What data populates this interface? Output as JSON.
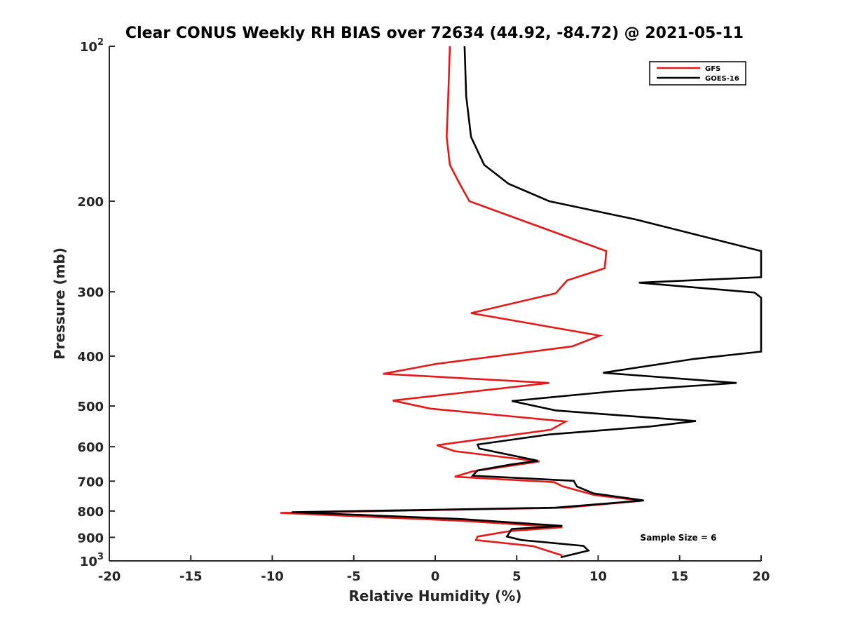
{
  "chart_data": {
    "type": "line",
    "title": "Clear CONUS Weekly RH BIAS over 72634 (44.92, -84.72) @ 2021-05-11",
    "xlabel": "Relative Humidity (%)",
    "ylabel": "Pressure (mb)",
    "xlim": [
      -20,
      20
    ],
    "ylim": [
      100,
      1000
    ],
    "yscale": "log",
    "y_reversed": true,
    "grid": false,
    "x_ticks": [
      -20,
      -15,
      -10,
      -5,
      0,
      5,
      10,
      15,
      20
    ],
    "x_tick_labels": [
      "-20",
      "-15",
      "-10",
      "-5",
      "0",
      "5",
      "10",
      "15",
      "20"
    ],
    "y_ticks": [
      100,
      200,
      300,
      400,
      500,
      600,
      700,
      800,
      900,
      1000
    ],
    "y_tick_labels": [
      {
        "value": 100,
        "base": "10",
        "exp": "2"
      },
      {
        "value": 200,
        "base": "200",
        "exp": ""
      },
      {
        "value": 300,
        "base": "300",
        "exp": ""
      },
      {
        "value": 400,
        "base": "400",
        "exp": ""
      },
      {
        "value": 500,
        "base": "500",
        "exp": ""
      },
      {
        "value": 600,
        "base": "600",
        "exp": ""
      },
      {
        "value": 700,
        "base": "700",
        "exp": ""
      },
      {
        "value": 800,
        "base": "800",
        "exp": ""
      },
      {
        "value": 900,
        "base": "900",
        "exp": ""
      },
      {
        "value": 1000,
        "base": "10",
        "exp": "3"
      }
    ],
    "legend_position": "top-right",
    "annotation": "Sample Size = 6",
    "series": [
      {
        "name": "GFS",
        "color": "#e41a1a",
        "points": [
          [
            0.9,
            100
          ],
          [
            0.8,
            125
          ],
          [
            0.7,
            150
          ],
          [
            0.9,
            170
          ],
          [
            1.5,
            185
          ],
          [
            2.1,
            200
          ],
          [
            10.5,
            250
          ],
          [
            10.4,
            270
          ],
          [
            8.1,
            285
          ],
          [
            7.4,
            302
          ],
          [
            2.2,
            330
          ],
          [
            10.1,
            365
          ],
          [
            8.4,
            383
          ],
          [
            0.1,
            414
          ],
          [
            -3.2,
            433
          ],
          [
            7.0,
            451
          ],
          [
            -2.6,
            488
          ],
          [
            -0.3,
            506
          ],
          [
            8.0,
            536
          ],
          [
            7.1,
            556
          ],
          [
            0.1,
            596
          ],
          [
            1.2,
            612
          ],
          [
            6.4,
            641
          ],
          [
            2.3,
            670
          ],
          [
            1.2,
            686
          ],
          [
            7.3,
            703
          ],
          [
            7.8,
            716
          ],
          [
            9.8,
            745
          ],
          [
            12.7,
            764
          ],
          [
            8.0,
            788
          ],
          [
            -9.5,
            807
          ],
          [
            1.7,
            836
          ],
          [
            7.8,
            860
          ],
          [
            4.6,
            875
          ],
          [
            2.6,
            897
          ],
          [
            2.5,
            911
          ],
          [
            6.0,
            936
          ],
          [
            7.8,
            976
          ]
        ]
      },
      {
        "name": "GOES-16",
        "color": "#000000",
        "points": [
          [
            1.8,
            100
          ],
          [
            1.9,
            125
          ],
          [
            2.2,
            150
          ],
          [
            3.0,
            170
          ],
          [
            4.5,
            185
          ],
          [
            7.0,
            200
          ],
          [
            12.3,
            217
          ],
          [
            20.0,
            250
          ],
          [
            20.0,
            277
          ],
          [
            20.0,
            281
          ],
          [
            12.5,
            288
          ],
          [
            19.6,
            301
          ],
          [
            20.0,
            308
          ],
          [
            20.0,
            392
          ],
          [
            15.9,
            405
          ],
          [
            10.3,
            431
          ],
          [
            18.5,
            451
          ],
          [
            11.0,
            468
          ],
          [
            4.7,
            489
          ],
          [
            7.4,
            510
          ],
          [
            16.0,
            535
          ],
          [
            13.2,
            548
          ],
          [
            7.0,
            568
          ],
          [
            2.6,
            594
          ],
          [
            2.7,
            605
          ],
          [
            6.3,
            639
          ],
          [
            4.6,
            650
          ],
          [
            2.6,
            667
          ],
          [
            2.3,
            683
          ],
          [
            8.5,
            699
          ],
          [
            8.7,
            717
          ],
          [
            9.7,
            739
          ],
          [
            12.8,
            763
          ],
          [
            7.4,
            788
          ],
          [
            -8.8,
            804
          ],
          [
            1.5,
            829
          ],
          [
            7.8,
            855
          ],
          [
            4.7,
            867
          ],
          [
            4.4,
            897
          ],
          [
            5.3,
            911
          ],
          [
            9.1,
            935
          ],
          [
            9.4,
            955
          ],
          [
            7.7,
            984
          ]
        ]
      }
    ]
  }
}
